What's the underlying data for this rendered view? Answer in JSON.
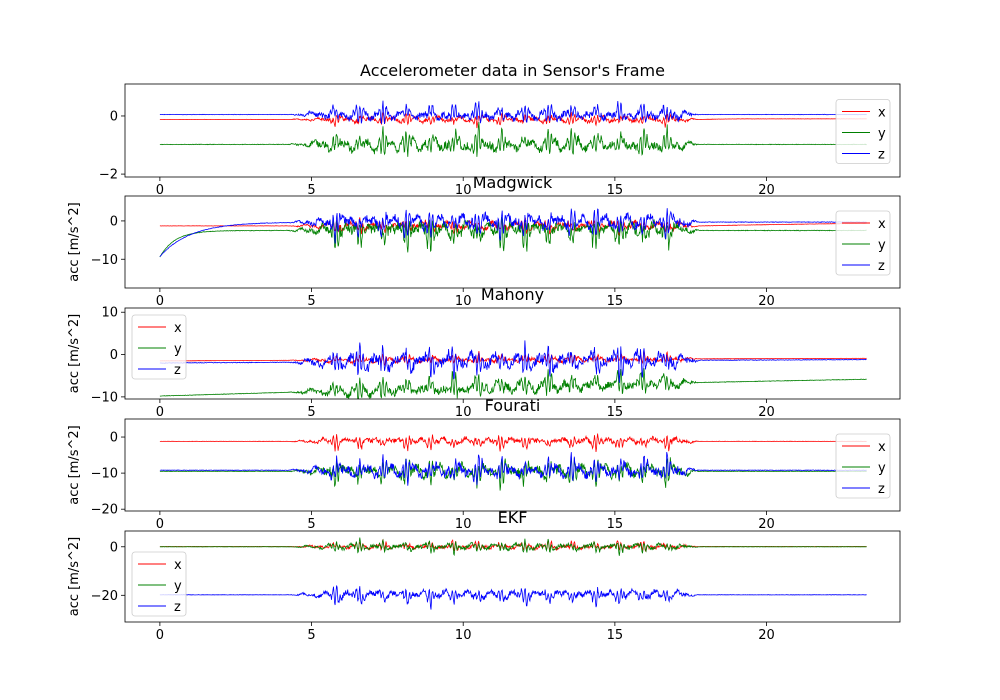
{
  "figure": {
    "background": "#ffffff",
    "series_colors": {
      "x": "#ff0000",
      "y": "#008000",
      "z": "#0000ff"
    }
  },
  "chart_data": [
    {
      "type": "line",
      "title": "Accelerometer data in Sensor's Frame",
      "xlabel": "",
      "ylabel": "",
      "xlim": [
        -1.15,
        24.4
      ],
      "ylim": [
        -2.1,
        1.1
      ],
      "x_ticks": [
        0,
        5,
        10,
        15,
        20
      ],
      "y_ticks": [
        -2,
        0
      ],
      "x_tick_labels": [
        "0",
        "5",
        "10",
        "15",
        "20"
      ],
      "y_tick_labels": [
        "−2",
        "0"
      ],
      "legend_position": "right",
      "legend_labels": [
        "x",
        "y",
        "z"
      ],
      "x_range": [
        0,
        23.3
      ],
      "active_interval": [
        4.5,
        17.5
      ],
      "series": [
        {
          "name": "x",
          "color": "#ff0000",
          "baseline": -0.12,
          "amplitude": 0.25,
          "transitions": [
            [
              17.9,
              -0.12,
              0.01,
              -0.1
            ]
          ]
        },
        {
          "name": "y",
          "color": "#008000",
          "baseline": -0.98,
          "amplitude": 0.55,
          "transitions": []
        },
        {
          "name": "z",
          "color": "#0000ff",
          "baseline": 0.05,
          "amplitude": 0.45,
          "transitions": []
        }
      ]
    },
    {
      "type": "line",
      "title": "Madgwick",
      "xlabel": "",
      "ylabel": "acc [m/s^2]",
      "xlim": [
        -1.15,
        24.4
      ],
      "ylim": [
        -17.5,
        6.5
      ],
      "x_ticks": [
        0,
        5,
        10,
        15,
        20
      ],
      "y_ticks": [
        -10,
        0
      ],
      "x_tick_labels": [
        "0",
        "5",
        "10",
        "15",
        "20"
      ],
      "y_tick_labels": [
        "−10",
        "0"
      ],
      "legend_position": "right",
      "legend_labels": [
        "x",
        "y",
        "z"
      ],
      "x_range": [
        0,
        23.3
      ],
      "active_interval": [
        4.5,
        17.5
      ],
      "series": [
        {
          "name": "x",
          "color": "#ff0000",
          "baseline": -1.3,
          "amplitude": 2.5,
          "transitions": [
            [
              17.9,
              -1.3,
              0.12,
              -0.2
            ]
          ]
        },
        {
          "name": "y",
          "color": "#008000",
          "baseline": -9.4,
          "amplitude": 5.0,
          "transitions": [
            [
              0,
              -9.4,
              0.006,
              -2.5
            ]
          ]
        },
        {
          "name": "z",
          "color": "#0000ff",
          "baseline": -9.3,
          "amplitude": 4.5,
          "transitions": [
            [
              0,
              -9.3,
              0.02,
              -0.3
            ]
          ]
        }
      ]
    },
    {
      "type": "line",
      "title": "Mahony",
      "xlabel": "",
      "ylabel": "acc [m/s^2]",
      "xlim": [
        -1.15,
        24.4
      ],
      "ylim": [
        -10.5,
        11
      ],
      "x_ticks": [
        0,
        5,
        10,
        15,
        20
      ],
      "y_ticks": [
        -10,
        0,
        10
      ],
      "x_tick_labels": [
        "0",
        "5",
        "10",
        "15",
        "20"
      ],
      "y_tick_labels": [
        "−10",
        "0",
        "10"
      ],
      "legend_position": "upper-left",
      "legend_labels": [
        "x",
        "y",
        "z"
      ],
      "x_range": [
        0,
        23.3
      ],
      "active_interval": [
        4.5,
        17.5
      ],
      "series": [
        {
          "name": "x",
          "color": "#ff0000",
          "baseline": 1.0,
          "amplitude": 1.5,
          "transitions": [
            [
              0,
              -1.5,
              0.9,
              0.0
            ]
          ]
        },
        {
          "name": "y",
          "color": "#008000",
          "baseline": 0.0,
          "amplitude": 3.5,
          "transitions": [
            [
              0,
              -9.8,
              0.9,
              0.0
            ]
          ]
        },
        {
          "name": "z",
          "color": "#0000ff",
          "baseline": 0.0,
          "amplitude": 4.5,
          "transitions": [
            [
              0,
              -2.0,
              0.9,
              0.0
            ]
          ]
        }
      ]
    },
    {
      "type": "line",
      "title": "Fourati",
      "xlabel": "",
      "ylabel": "acc [m/s^2]",
      "xlim": [
        -1.15,
        24.4
      ],
      "ylim": [
        -20.5,
        5
      ],
      "x_ticks": [
        0,
        5,
        10,
        15,
        20
      ],
      "y_ticks": [
        -20,
        -10,
        0
      ],
      "x_tick_labels": [
        "0",
        "5",
        "10",
        "15",
        "20"
      ],
      "y_tick_labels": [
        "−20",
        "−10",
        "0"
      ],
      "legend_position": "right",
      "legend_labels": [
        "x",
        "y",
        "z"
      ],
      "x_range": [
        0,
        23.3
      ],
      "active_interval": [
        4.5,
        17.5
      ],
      "series": [
        {
          "name": "x",
          "color": "#ff0000",
          "baseline": -1.2,
          "amplitude": 2.5,
          "transitions": []
        },
        {
          "name": "y",
          "color": "#008000",
          "baseline": -9.5,
          "amplitude": 4.5,
          "transitions": []
        },
        {
          "name": "z",
          "color": "#0000ff",
          "baseline": -9.2,
          "amplitude": 4.5,
          "transitions": []
        }
      ]
    },
    {
      "type": "line",
      "title": "EKF",
      "xlabel": "",
      "ylabel": "acc [m/s^2]",
      "xlim": [
        -1.15,
        24.4
      ],
      "ylim": [
        -31,
        6.5
      ],
      "x_ticks": [
        0,
        5,
        10,
        15,
        20
      ],
      "y_ticks": [
        -20,
        0
      ],
      "x_tick_labels": [
        "0",
        "5",
        "10",
        "15",
        "20"
      ],
      "y_tick_labels": [
        "−20",
        "0"
      ],
      "legend_position": "lower-left",
      "legend_labels": [
        "x",
        "y",
        "z"
      ],
      "x_range": [
        0,
        23.3
      ],
      "active_interval": [
        4.5,
        17.5
      ],
      "series": [
        {
          "name": "x",
          "color": "#ff0000",
          "baseline": 0.1,
          "amplitude": 2.5,
          "transitions": []
        },
        {
          "name": "y",
          "color": "#008000",
          "baseline": 0.0,
          "amplitude": 3.0,
          "transitions": []
        },
        {
          "name": "z",
          "color": "#0000ff",
          "baseline": -19.8,
          "amplitude": 4.5,
          "transitions": []
        }
      ]
    }
  ]
}
